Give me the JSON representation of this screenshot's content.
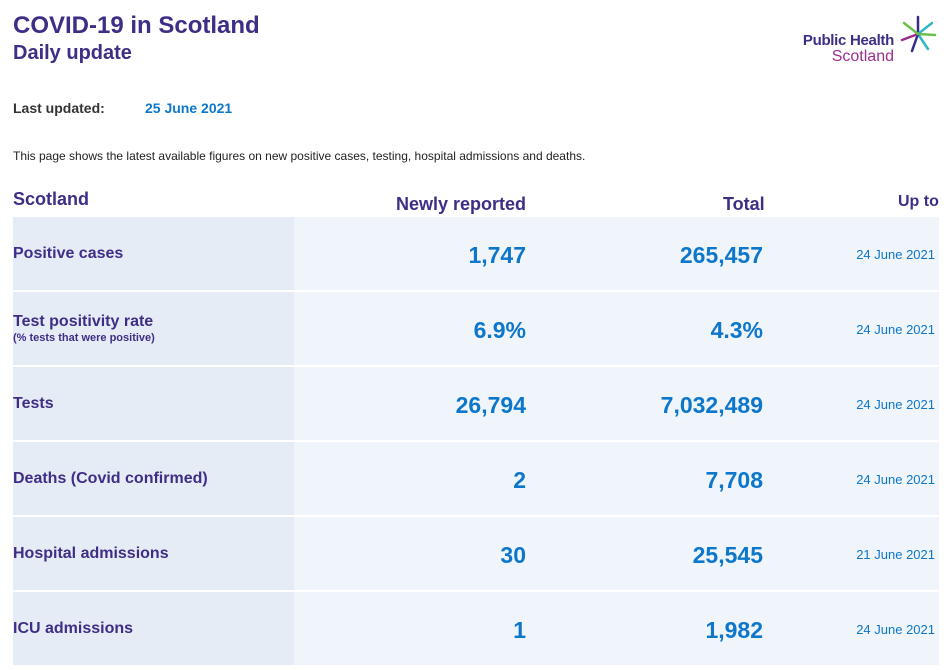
{
  "header": {
    "title": "COVID-19 in Scotland",
    "subtitle": "Daily update",
    "logo_line1": "Public Health",
    "logo_line2": "Scotland"
  },
  "updated": {
    "label": "Last updated:",
    "value": "25 June 2021"
  },
  "intro": "This page shows the latest available figures on new positive cases, testing, hospital admissions and deaths.",
  "table": {
    "headers": {
      "region": "Scotland",
      "new": "Newly reported",
      "total": "Total",
      "upto": "Up to"
    },
    "rows": [
      {
        "label": "Positive cases",
        "sublabel": "",
        "new": "1,747",
        "total": "265,457",
        "date": "24 June 2021"
      },
      {
        "label": "Test positivity rate",
        "sublabel": "(% tests that were positive)",
        "new": "6.9%",
        "total": "4.3%",
        "date": "24 June 2021"
      },
      {
        "label": "Tests",
        "sublabel": "",
        "new": "26,794",
        "total": "7,032,489",
        "date": "24 June 2021"
      },
      {
        "label": "Deaths (Covid confirmed)",
        "sublabel": "",
        "new": "2",
        "total": "7,708",
        "date": "24 June 2021"
      },
      {
        "label": "Hospital admissions",
        "sublabel": "",
        "new": "30",
        "total": "25,545",
        "date": "21 June 2021"
      },
      {
        "label": "ICU admissions",
        "sublabel": "",
        "new": "1",
        "total": "1,982",
        "date": "24 June 2021"
      }
    ]
  },
  "colors": {
    "primary": "#3f2d86",
    "accent": "#0d77cc",
    "label_bg": "#e6ecf6",
    "row_bg": "#f0f4fb",
    "logo_secondary": "#9b2d8e"
  }
}
